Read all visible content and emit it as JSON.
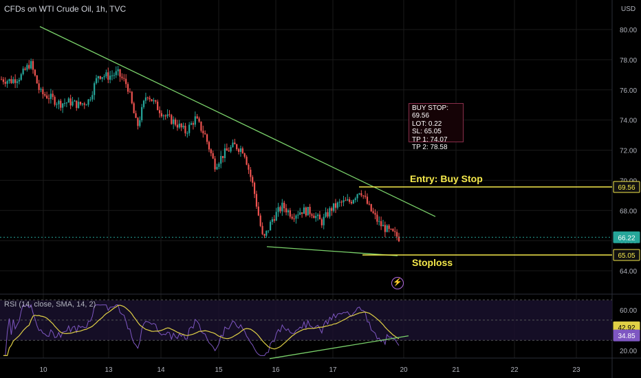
{
  "title": "CFDs on WTI Crude Oil, 1h, TVC",
  "currency": "USD",
  "price_ticks": [
    "80.00",
    "78.00",
    "76.00",
    "74.00",
    "72.00",
    "70.00",
    "68.00",
    "66.00",
    "64.00"
  ],
  "x_ticks": [
    "10",
    "13",
    "14",
    "15",
    "16",
    "17",
    "20",
    "21",
    "22",
    "23"
  ],
  "rsi_ticks": [
    "60.00",
    "20.00"
  ],
  "rsi_title": "RSI (14, close, SMA, 14, 2)",
  "labels": {
    "entry_price": "69.56",
    "last_price": "66.22",
    "stop_price": "65.05",
    "rsi_value": "42.92",
    "rsi_sma_value": "34.85"
  },
  "trade_box": [
    "BUY STOP: 69.56",
    "LOT: 0.22",
    "SL: 65.05",
    "TP 1: 74.07",
    "TP 2: 78.58"
  ],
  "annotations": {
    "entry": "Entry: Buy Stop",
    "stoploss": "Stoploss"
  },
  "colors": {
    "up": "#26a69a",
    "down": "#ef5350",
    "trend": "#7bd36b",
    "level": "#f5e94b",
    "rsi": "#7e57c2",
    "rsi_sma": "#e0d046",
    "grid": "#1a1a1a",
    "axis_text": "#b2b5be"
  },
  "chart_data": [
    {
      "type": "candlestick",
      "title": "CFDs on WTI Crude Oil, 1h, TVC",
      "ylabel": "USD",
      "x_tick_labels": [
        "10",
        "13",
        "14",
        "15",
        "16",
        "17",
        "20",
        "21",
        "22",
        "23"
      ],
      "ylim": [
        62.8,
        81.3
      ],
      "close_path": [
        [
          0,
          76.7
        ],
        [
          1,
          76.6
        ],
        [
          2,
          76.9
        ],
        [
          3,
          77.8
        ],
        [
          4,
          75.8
        ],
        [
          5,
          75.5
        ],
        [
          6,
          75.1
        ],
        [
          7,
          75.2
        ],
        [
          8,
          75.0
        ],
        [
          9,
          75.3
        ],
        [
          10,
          77.0
        ],
        [
          11,
          76.9
        ],
        [
          12,
          77.1
        ],
        [
          13,
          76.3
        ],
        [
          14,
          73.5
        ],
        [
          15,
          75.8
        ],
        [
          16,
          74.9
        ],
        [
          17,
          74.2
        ],
        [
          18,
          73.8
        ],
        [
          19,
          73.2
        ],
        [
          20,
          74.1
        ],
        [
          21,
          73.0
        ],
        [
          22,
          71.0
        ],
        [
          23,
          71.8
        ],
        [
          24,
          72.3
        ],
        [
          25,
          72.0
        ],
        [
          26,
          69.5
        ],
        [
          27,
          66.0
        ],
        [
          28,
          67.5
        ],
        [
          29,
          68.3
        ],
        [
          30,
          67.7
        ],
        [
          31,
          68.0
        ],
        [
          32,
          67.9
        ],
        [
          33,
          67.2
        ],
        [
          34,
          68.1
        ],
        [
          35,
          68.5
        ],
        [
          36,
          68.6
        ],
        [
          37,
          69.4
        ],
        [
          38,
          68.1
        ],
        [
          39,
          67.1
        ],
        [
          40,
          66.6
        ],
        [
          41,
          66.2
        ]
      ],
      "n_candles": 202,
      "lines": [
        {
          "name": "Entry: Buy Stop",
          "value": 69.56
        },
        {
          "name": "Stoploss",
          "value": 65.05
        },
        {
          "name": "last",
          "value": 66.22
        }
      ],
      "trendlines": [
        {
          "x": [
            "10",
            "~20"
          ],
          "y": [
            80.2,
            67.6
          ]
        },
        {
          "x": [
            "16",
            "~19"
          ],
          "y": [
            65.6,
            65.0
          ]
        }
      ]
    },
    {
      "type": "line",
      "title": "RSI (14, close, SMA, 14, 2)",
      "ylim": [
        10,
        70
      ],
      "levels": [
        70,
        50,
        30
      ],
      "series": [
        {
          "name": "RSI",
          "last": 42.92
        },
        {
          "name": "SMA",
          "last": 34.85
        }
      ]
    }
  ]
}
